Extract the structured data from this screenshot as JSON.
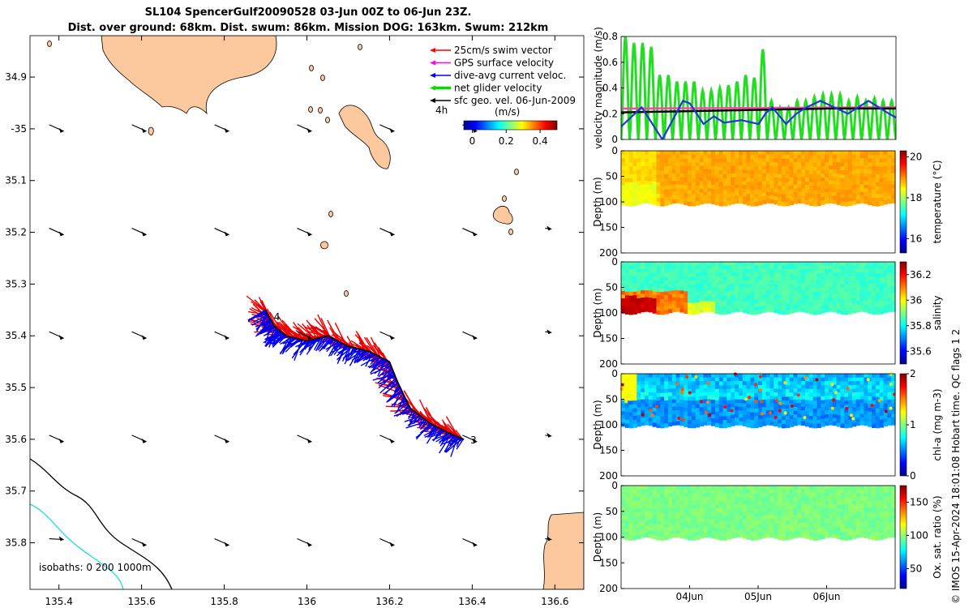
{
  "header": {
    "title_line1": "SL104 SpencerGulf20090528 03-Jun 00Z to 06-Jun 23Z.",
    "title_line2": "Dist. over ground: 68km. Dist. swum: 86km. Mission DOG: 163km. Swum: 212km"
  },
  "chart_data": [
    {
      "type": "map",
      "x": [
        135.4,
        135.6,
        135.8,
        136,
        136.2,
        136.4,
        136.6
      ],
      "xticklabels": [
        "135.4",
        "135.6",
        "135.8",
        "136",
        "136.2",
        "136.4",
        "136.6"
      ],
      "xlim": [
        135.33,
        136.67
      ],
      "ylim": [
        -35.89,
        -34.82
      ],
      "yticks": [
        -34.9,
        -35.0,
        -35.1,
        -35.2,
        -35.3,
        -35.4,
        -35.5,
        -35.6,
        -35.7,
        -35.8
      ],
      "yticklabels": [
        "34.9",
        "-35",
        "35.1",
        "35.2",
        "35.3",
        "35.4",
        "35.5",
        "35.6",
        "35.7",
        "35.8"
      ],
      "legend": [
        {
          "label": "25cm/s swim vector",
          "color": "#ff0000"
        },
        {
          "label": "GPS surface velocity",
          "color": "#ff00ff"
        },
        {
          "label": "dive-avg current veloc.",
          "color": "#0000ff"
        },
        {
          "label": "net glider velocity",
          "color": "#00dd00"
        },
        {
          "label": "sfc geo. vel. 06-Jun-2009",
          "color": "#000000"
        }
      ],
      "colorbar": {
        "label": "(m/s)",
        "ticks": [
          "0",
          "0.2",
          "0.4"
        ],
        "range": [
          -0.05,
          0.5
        ]
      },
      "annotation_4h": "4h",
      "end_label": "3",
      "isobaths_label": "isobaths: 0   200  1000m",
      "track": [
        [
          135.9,
          -35.35
        ],
        [
          135.92,
          -35.38
        ],
        [
          135.95,
          -35.4
        ],
        [
          136.0,
          -35.41
        ],
        [
          136.05,
          -35.4
        ],
        [
          136.1,
          -35.42
        ],
        [
          136.15,
          -35.43
        ],
        [
          136.2,
          -35.45
        ],
        [
          136.22,
          -35.49
        ],
        [
          136.25,
          -35.54
        ],
        [
          136.3,
          -35.57
        ],
        [
          136.35,
          -35.59
        ],
        [
          136.38,
          -35.6
        ]
      ]
    },
    {
      "type": "line",
      "ylabel": "velocity magnitude (m/s)",
      "ylim": [
        0,
        0.8
      ],
      "yticklabels": [
        "0",
        "0.2",
        "0.4",
        "0.6",
        "0.8"
      ],
      "xlim": [
        0,
        4
      ],
      "series": [
        {
          "name": "net glider velocity",
          "color": "#22dd22",
          "peaks": [
            0.8,
            0.75,
            0.75,
            0.72,
            0.5,
            0.5,
            0.45,
            0.45,
            0.45,
            0.38,
            0.38,
            0.4,
            0.42,
            0.45,
            0.5,
            0.48,
            0.7,
            0.3,
            0.25,
            0.25,
            0.3,
            0.3,
            0.33,
            0.35,
            0.35,
            0.35,
            0.3,
            0.33,
            0.3,
            0.32,
            0.3,
            0.3
          ]
        },
        {
          "name": "dive-avg current veloc.",
          "color": "#2233dd",
          "x": [
            0,
            0.3,
            0.6,
            0.9,
            1.0,
            1.2,
            1.35,
            1.5,
            1.75,
            2.0,
            2.1,
            2.2,
            2.4,
            2.55,
            2.7,
            2.9,
            3.1,
            3.3,
            3.6,
            3.9,
            4.0
          ],
          "y": [
            0.1,
            0.25,
            0.0,
            0.3,
            0.28,
            0.12,
            0.18,
            0.13,
            0.15,
            0.12,
            0.2,
            0.25,
            0.12,
            0.2,
            0.25,
            0.3,
            0.25,
            0.2,
            0.3,
            0.2,
            0.17
          ]
        },
        {
          "name": "GPS surface velocity",
          "color": "#ff44aa",
          "x": [
            0,
            4
          ],
          "y": [
            0.24,
            0.25
          ]
        },
        {
          "name": "sfc geo. vel.",
          "color": "#000000",
          "x": [
            0,
            1,
            2,
            3,
            4
          ],
          "y": [
            0.21,
            0.22,
            0.23,
            0.24,
            0.24
          ]
        }
      ]
    },
    {
      "type": "heatmap",
      "variable": "temperature",
      "ylabel": "Depth (m)",
      "yticklabels": [
        "0",
        "50",
        "100",
        "150",
        "200"
      ],
      "cbar_label": "temperature (°C)",
      "cbar_ticks": [
        "16",
        "18",
        "20"
      ],
      "clim": [
        15.3,
        20.3
      ],
      "base_value": 18.6,
      "bottom_depth": 105
    },
    {
      "type": "heatmap",
      "variable": "salinity",
      "ylabel": "Depth (m)",
      "yticklabels": [
        "0",
        "50",
        "100",
        "150",
        "200"
      ],
      "cbar_label": "salinity",
      "cbar_ticks": [
        "35.6",
        "35.8",
        "36",
        "36.2"
      ],
      "clim": [
        35.5,
        36.3
      ],
      "base_value": 35.85,
      "bottom_depth": 100
    },
    {
      "type": "heatmap",
      "variable": "chl-a",
      "ylabel": "Depth (m)",
      "yticklabels": [
        "0",
        "50",
        "100",
        "150",
        "200"
      ],
      "cbar_label": "chl-a (mg m-3)",
      "cbar_ticks": [
        "0",
        "1",
        "2"
      ],
      "clim": [
        0,
        2
      ],
      "base_value": 0.85,
      "bottom_depth": 103
    },
    {
      "type": "heatmap",
      "variable": "oxygen",
      "ylabel": "Depth (m)",
      "yticklabels": [
        "0",
        "50",
        "100",
        "150",
        "200"
      ],
      "cbar_label": "Ox. sat. ratio (%)",
      "cbar_ticks": [
        "50",
        "100",
        "150"
      ],
      "clim": [
        20,
        175
      ],
      "base_value": 97,
      "bottom_depth": 103,
      "xticklabels": [
        "04Jun",
        "05Jun",
        "06Jun"
      ],
      "xtick_days": [
        1,
        2,
        3
      ]
    }
  ],
  "footer": {
    "copyright": "© IMOS 15-Apr-2024 18:01:08 Hobart time. QC flags 1  2"
  }
}
